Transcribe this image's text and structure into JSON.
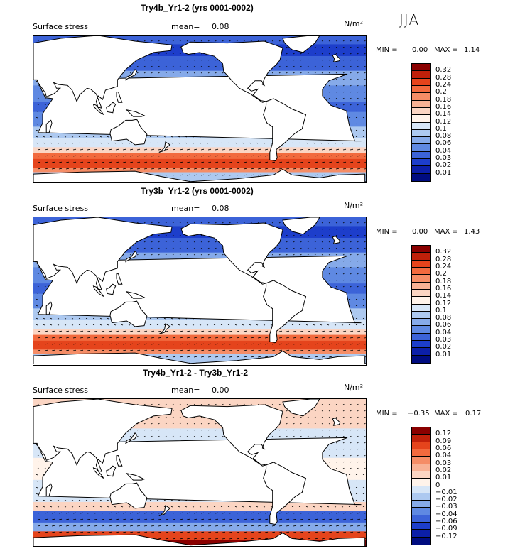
{
  "season": "JJA",
  "units": "N/m²",
  "panels": [
    {
      "title": "Try4b_Yr1-2 (yrs 0001-0002)",
      "field": "Surface stress",
      "mean_label": "mean=",
      "mean_value": "0.08",
      "min_label": "MIN =",
      "min_value": "0.00",
      "max_label": "MAX =",
      "max_value": "1.14",
      "levels": [
        "0.32",
        "0.28",
        "0.24",
        "0.2",
        "0.18",
        "0.16",
        "0.14",
        "0.12",
        "0.1",
        "0.08",
        "0.06",
        "0.04",
        "0.03",
        "0.02",
        "0.01"
      ],
      "colors": [
        "#8a0000",
        "#c0200a",
        "#e5441c",
        "#f26a3e",
        "#f58d66",
        "#f8b295",
        "#fbd5c3",
        "#fff3ea",
        "#d7e6f7",
        "#adc9f0",
        "#86aae9",
        "#5f89e2",
        "#3c63d8",
        "#1d3ecb",
        "#0c1fa8",
        "#000c80"
      ],
      "style": "full"
    },
    {
      "title": "Try3b_Yr1-2 (yrs 0001-0002)",
      "field": "Surface stress",
      "mean_label": "mean=",
      "mean_value": "0.08",
      "min_label": "MIN =",
      "min_value": "0.00",
      "max_label": "MAX =",
      "max_value": "1.43",
      "levels": [
        "0.32",
        "0.28",
        "0.24",
        "0.2",
        "0.18",
        "0.16",
        "0.14",
        "0.12",
        "0.1",
        "0.08",
        "0.06",
        "0.04",
        "0.03",
        "0.02",
        "0.01"
      ],
      "colors": [
        "#8a0000",
        "#c0200a",
        "#e5441c",
        "#f26a3e",
        "#f58d66",
        "#f8b295",
        "#fbd5c3",
        "#fff3ea",
        "#d7e6f7",
        "#adc9f0",
        "#86aae9",
        "#5f89e2",
        "#3c63d8",
        "#1d3ecb",
        "#0c1fa8",
        "#000c80"
      ],
      "style": "full"
    },
    {
      "title": "Try4b_Yr1-2 - Try3b_Yr1-2",
      "field": "Surface stress",
      "mean_label": "mean=",
      "mean_value": "0.00",
      "min_label": "MIN =",
      "min_value": "−0.35",
      "max_label": "MAX =",
      "max_value": "0.17",
      "levels": [
        "0.12",
        "0.09",
        "0.06",
        "0.04",
        "0.03",
        "0.02",
        "0.01",
        "0",
        "−0.01",
        "−0.02",
        "−0.03",
        "−0.04",
        "−0.06",
        "−0.09",
        "−0.12"
      ],
      "colors": [
        "#8a0000",
        "#c0200a",
        "#e5441c",
        "#f26a3e",
        "#f58d66",
        "#f8b295",
        "#fbd5c3",
        "#fff3ea",
        "#d7e6f7",
        "#adc9f0",
        "#86aae9",
        "#5f89e2",
        "#3c63d8",
        "#1d3ecb",
        "#0c1fa8",
        "#000c80"
      ],
      "style": "diff"
    }
  ],
  "chart_data": [
    {
      "type": "heatmap",
      "title": "Try4b_Yr1-2 (yrs 0001-0002)",
      "variable": "Surface stress",
      "units": "N/m²",
      "season": "JJA",
      "mean": 0.08,
      "min": 0.0,
      "max": 1.14,
      "contour_levels": [
        0.01,
        0.02,
        0.03,
        0.04,
        0.06,
        0.08,
        0.1,
        0.12,
        0.14,
        0.16,
        0.18,
        0.2,
        0.24,
        0.28,
        0.32
      ]
    },
    {
      "type": "heatmap",
      "title": "Try3b_Yr1-2 (yrs 0001-0002)",
      "variable": "Surface stress",
      "units": "N/m²",
      "season": "JJA",
      "mean": 0.08,
      "min": 0.0,
      "max": 1.43,
      "contour_levels": [
        0.01,
        0.02,
        0.03,
        0.04,
        0.06,
        0.08,
        0.1,
        0.12,
        0.14,
        0.16,
        0.18,
        0.2,
        0.24,
        0.28,
        0.32
      ]
    },
    {
      "type": "heatmap",
      "title": "Try4b_Yr1-2 - Try3b_Yr1-2",
      "variable": "Surface stress",
      "units": "N/m²",
      "season": "JJA",
      "mean": 0.0,
      "min": -0.35,
      "max": 0.17,
      "contour_levels": [
        -0.12,
        -0.09,
        -0.06,
        -0.04,
        -0.03,
        -0.02,
        -0.01,
        0,
        0.01,
        0.02,
        0.03,
        0.04,
        0.06,
        0.09,
        0.12
      ]
    }
  ]
}
